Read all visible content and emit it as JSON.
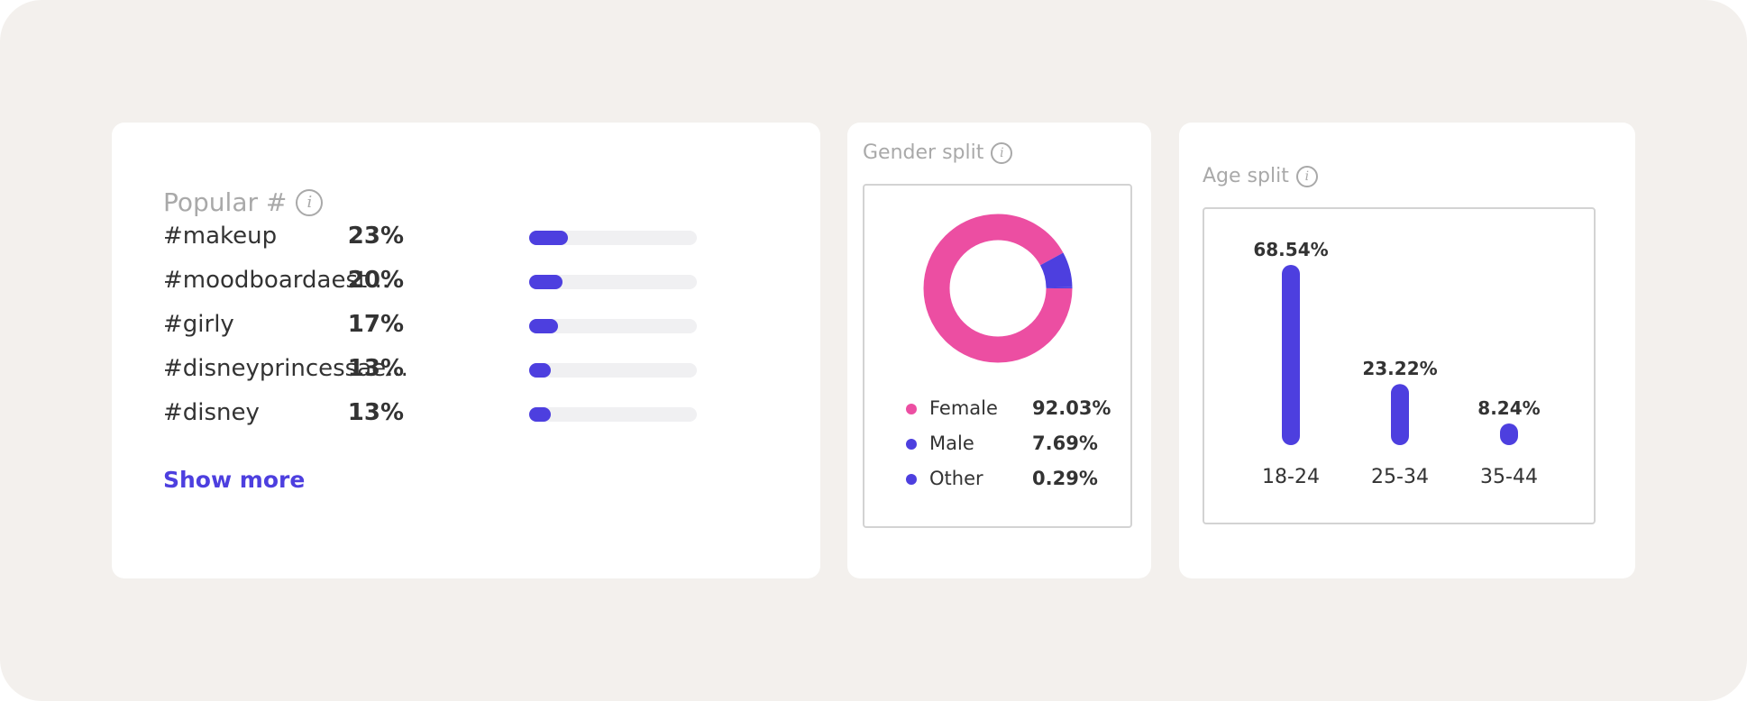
{
  "colors": {
    "accent": "#4d3fdf",
    "female": "#ec4ea2",
    "male": "#4d3fdf",
    "other": "#4d3fdf",
    "track": "#f0f0f2"
  },
  "hashtags": {
    "title": "Popular #",
    "info_icon": "info-icon",
    "items": [
      {
        "label": "#makeup",
        "pct_label": "23%",
        "value": 23
      },
      {
        "label": "#moodboardaest...",
        "pct_label": "20%",
        "value": 20
      },
      {
        "label": "#girly",
        "pct_label": "17%",
        "value": 17
      },
      {
        "label": "#disneyprincessae...",
        "pct_label": "13%",
        "value": 13
      },
      {
        "label": "#disney",
        "pct_label": "13%",
        "value": 13
      }
    ],
    "show_more": "Show more"
  },
  "gender": {
    "title": "Gender split",
    "info_icon": "info-icon",
    "legend": [
      {
        "label": "Female",
        "value": "92.03%"
      },
      {
        "label": "Male",
        "value": "7.69%"
      },
      {
        "label": "Other",
        "value": "0.29%"
      }
    ]
  },
  "age": {
    "title": "Age split",
    "info_icon": "info-icon"
  },
  "chart_data": [
    {
      "type": "pie",
      "title": "Gender split",
      "categories": [
        "Female",
        "Male",
        "Other"
      ],
      "values": [
        92.03,
        7.69,
        0.29
      ],
      "colors": [
        "#ec4ea2",
        "#4d3fdf",
        "#4d3fdf"
      ],
      "donut": true
    },
    {
      "type": "bar",
      "title": "Age split",
      "categories": [
        "18-24",
        "25-34",
        "35-44"
      ],
      "values": [
        68.54,
        23.22,
        8.24
      ],
      "value_labels": [
        "68.54%",
        "23.22%",
        "8.24%"
      ],
      "color": "#4d3fdf",
      "grid": false
    }
  ]
}
